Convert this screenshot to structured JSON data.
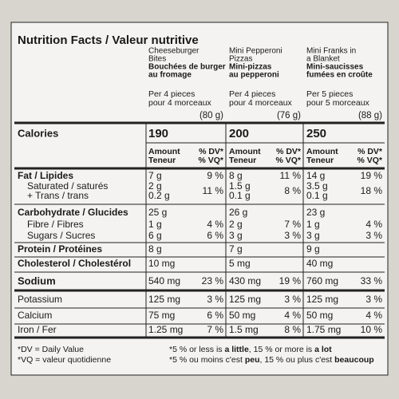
{
  "title": "Nutrition Facts / Valeur nutritive",
  "products": [
    {
      "name": [
        "Cheeseburger",
        "Bites"
      ],
      "name_fr": [
        "Bouchées de burger",
        "au fromage"
      ],
      "serving": [
        "Per 4 pieces",
        "pour 4 morceaux"
      ],
      "size": "(80 g)",
      "calories": 190
    },
    {
      "name": [
        "Mini Pepperoni",
        "Pizzas"
      ],
      "name_fr": [
        "Mini-pizzas",
        "au pepperoni"
      ],
      "serving": [
        "Per 4 pieces",
        "pour 4 morceaux"
      ],
      "size": "(76 g)",
      "calories": 200
    },
    {
      "name": [
        "Mini Franks in",
        "a Blanket"
      ],
      "name_fr": [
        "Mini-saucisses",
        "fumées en croûte"
      ],
      "serving": [
        "Per 5 pieces",
        "pour 5 morceaux"
      ],
      "size": "(88 g)",
      "calories": 250
    }
  ],
  "calories_label": "Calories",
  "amount_header": [
    "Amount",
    "Teneur"
  ],
  "dv_header": [
    "% DV*",
    "% VQ*"
  ],
  "sections": [
    {
      "rows": [
        {
          "label": "Fat / Lipides",
          "cells": [
            [
              "7 g",
              "9 %"
            ],
            [
              "8 g",
              "11 %"
            ],
            [
              "14 g",
              "19 %"
            ]
          ]
        },
        {
          "label": "Saturated / saturés",
          "cells": [
            [
              "2 g"
            ],
            [
              "1.5 g"
            ],
            [
              "3.5 g"
            ]
          ]
        },
        {
          "label": "+ Trans / trans",
          "cells": [
            [
              "0.2 g"
            ],
            [
              "0.1 g"
            ],
            [
              "0.1 g"
            ]
          ]
        }
      ],
      "combined_dv": [
        "11 %",
        "8 %",
        "18 %"
      ]
    },
    {
      "rows": [
        {
          "label": "Carbohydrate / Glucides",
          "cells": [
            [
              "25 g"
            ],
            [
              "26 g"
            ],
            [
              "23 g"
            ]
          ]
        },
        {
          "label": "Fibre / Fibres",
          "cells": [
            [
              "1 g",
              "4 %"
            ],
            [
              "2 g",
              "7 %"
            ],
            [
              "1 g",
              "4 %"
            ]
          ]
        },
        {
          "label": "Sugars / Sucres",
          "cells": [
            [
              "6 g",
              "6 %"
            ],
            [
              "3 g",
              "3 %"
            ],
            [
              "3 g",
              "3 %"
            ]
          ]
        }
      ]
    },
    {
      "rows": [
        {
          "label": "Protein / Protéines",
          "cells": [
            [
              "8 g"
            ],
            [
              "7 g"
            ],
            [
              "9 g"
            ]
          ]
        }
      ]
    },
    {
      "rows": [
        {
          "label": "Cholesterol / Cholestérol",
          "cells": [
            [
              "10 mg"
            ],
            [
              "5 mg"
            ],
            [
              "40 mg"
            ]
          ]
        }
      ]
    },
    {
      "rows": [
        {
          "label": "Sodium",
          "cells": [
            [
              "540 mg",
              "23 %"
            ],
            [
              "430 mg",
              "19 %"
            ],
            [
              "760 mg",
              "33 %"
            ]
          ]
        }
      ]
    },
    {
      "rows": [
        {
          "label": "Potassium",
          "cells": [
            [
              "125 mg",
              "3 %"
            ],
            [
              "125 mg",
              "3 %"
            ],
            [
              "125 mg",
              "3 %"
            ]
          ]
        }
      ]
    },
    {
      "rows": [
        {
          "label": "Calcium",
          "cells": [
            [
              "75 mg",
              "6 %"
            ],
            [
              "50 mg",
              "4 %"
            ],
            [
              "50 mg",
              "4 %"
            ]
          ]
        }
      ]
    },
    {
      "rows": [
        {
          "label": "Iron / Fer",
          "cells": [
            [
              "1.25 mg",
              "7 %"
            ],
            [
              "1.5 mg",
              "8 %"
            ],
            [
              "1.75 mg",
              "10 %"
            ]
          ]
        }
      ]
    }
  ],
  "footnote_left": [
    "*DV = Daily Value",
    "*VQ = valeur quotidienne"
  ],
  "footnote_right": [
    [
      {
        "text": "*5 % or less is ",
        "bold": false
      },
      {
        "text": "a little",
        "bold": true
      },
      {
        "text": ", 15 % or more is ",
        "bold": false
      },
      {
        "text": "a lot",
        "bold": true
      }
    ],
    [
      {
        "text": "*5 % ou moins c'est ",
        "bold": false
      },
      {
        "text": "peu",
        "bold": true
      },
      {
        "text": ", 15 % ou plus c'est ",
        "bold": false
      },
      {
        "text": "beaucoup",
        "bold": true
      }
    ]
  ]
}
